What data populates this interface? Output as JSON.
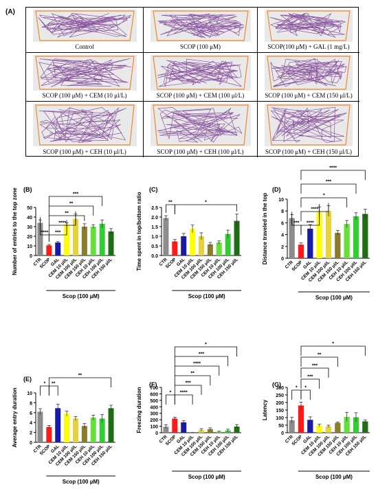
{
  "figure_label": "(A)",
  "panel_a": {
    "captions": [
      "Control",
      "SCOP (100 μM)",
      "SCOP(100 μM) + GAL (1 mg/L)",
      "SCOP (100 μM) + CEM (10 μl/L)",
      "SCOP (100 μM) + CEM (100 μl/L)",
      "SCOP (100 μM) + CEM (150 μl/L)",
      "SCOP (100 μM) + CEH (10 μl/L)",
      "SCOP (100 μM) + CEH (100 μl/L)",
      "SCOP (100 μM) + CEH (150 μl/L)"
    ],
    "track_color": "#7a3c93",
    "tank_color": "#e8892b"
  },
  "colors": [
    "#8c8c8c",
    "#ff1a1a",
    "#1a1aa8",
    "#ffff00",
    "#e6d23a",
    "#8a7d2a",
    "#66e03a",
    "#33cc33",
    "#1f6e14"
  ],
  "chart_data": [
    {
      "id": "B",
      "label": "(B)",
      "type": "bar",
      "categories": [
        "CTR",
        "SCOP",
        "GAL",
        "CEM 10 μl/L",
        "CEM 100 μl/L",
        "CEM 150 μl/L",
        "CEH 10 μl/L",
        "CEH 100 μl/L",
        "CEH 150 μl/L"
      ],
      "values": [
        34,
        10.5,
        13.5,
        32,
        38,
        30,
        30,
        33,
        25
      ],
      "errors": [
        3,
        1,
        1,
        2,
        5,
        3,
        2,
        4,
        3
      ],
      "ylabel": "Number of entries to the top zone",
      "ylim": [
        0,
        50
      ],
      "yticks": [
        0,
        10,
        20,
        30,
        40,
        50
      ],
      "group_label": "Scop (100 µM)",
      "sig": [
        {
          "from": 0,
          "to": 1,
          "label": "****",
          "level": 0
        },
        {
          "from": 1,
          "to": 3,
          "label": "***",
          "level": 0
        },
        {
          "from": 1,
          "to": 4,
          "label": "****",
          "level": 1
        },
        {
          "from": 1,
          "to": 5,
          "label": "**",
          "level": 2
        },
        {
          "from": 1,
          "to": 6,
          "label": "**",
          "level": 3
        },
        {
          "from": 1,
          "to": 7,
          "label": "***",
          "level": 4
        }
      ]
    },
    {
      "id": "C",
      "label": "(C)",
      "type": "bar",
      "categories": [
        "CTR",
        "SCOP",
        "GAL",
        "CEM 10 μl/L",
        "CEM 100 μl/L",
        "CEM 150 μl/L",
        "CEH 10 μl/L",
        "CEH 100 μl/L",
        "CEH 150 μl/L"
      ],
      "values": [
        1.95,
        0.73,
        1.0,
        1.38,
        1.0,
        0.58,
        0.68,
        1.12,
        1.8
      ],
      "errors": [
        0.12,
        0.1,
        0.15,
        0.2,
        0.18,
        0.1,
        0.08,
        0.2,
        0.35
      ],
      "ylabel": "Time spent in top/bottom ratio",
      "ylim": [
        0,
        2.5
      ],
      "yticks": [
        0.0,
        0.5,
        1.0,
        1.5,
        2.0,
        2.5
      ],
      "group_label": "Scop (100 µM)",
      "sig": [
        {
          "from": 0,
          "to": 1,
          "label": "**",
          "level": 0
        },
        {
          "from": 1,
          "to": 8,
          "label": "*",
          "level": 0
        }
      ]
    },
    {
      "id": "D",
      "label": "(D)",
      "type": "bar",
      "categories": [
        "CTR",
        "SCOP",
        "GAL",
        "CEM 10 μl/L",
        "CEM 100 μl/L",
        "CEM 150 μl/L",
        "CEH 10 μl/L",
        "CEH 100 μl/L",
        "CEH 150 μl/L"
      ],
      "values": [
        6.8,
        2.3,
        5.0,
        7.8,
        8.0,
        4.3,
        5.8,
        7.1,
        7.5
      ],
      "errors": [
        0.6,
        0.3,
        0.7,
        0.9,
        0.9,
        0.4,
        0.6,
        0.6,
        0.8
      ],
      "ylabel": "Distance traveled in the top",
      "ylim": [
        0,
        10
      ],
      "yticks": [
        0,
        2,
        4,
        6,
        8,
        10
      ],
      "group_label": "Scop (100 µM)",
      "sig": [
        {
          "from": 0,
          "to": 1,
          "label": "***",
          "level": 0
        },
        {
          "from": 1,
          "to": 3,
          "label": "****",
          "level": 0
        },
        {
          "from": 1,
          "to": 4,
          "label": "****",
          "level": 1
        },
        {
          "from": 1,
          "to": 6,
          "label": "*",
          "level": 2
        },
        {
          "from": 1,
          "to": 7,
          "label": "***",
          "level": 3
        },
        {
          "from": 1,
          "to": 8,
          "label": "****",
          "level": 4
        }
      ]
    },
    {
      "id": "E",
      "label": "(E)",
      "type": "bar",
      "categories": [
        "CTR",
        "SCOP",
        "GAL",
        "CEM 10 μl/L",
        "CEM 100 μl/L",
        "CEM 150 μl/L",
        "CEH 10 μl/L",
        "CEH 100 μl/L",
        "CEH 150 μl/L"
      ],
      "values": [
        6.2,
        3.1,
        6.9,
        5.8,
        4.8,
        3.3,
        5.0,
        4.8,
        6.9
      ],
      "errors": [
        0.6,
        0.3,
        0.8,
        0.5,
        0.4,
        0.5,
        0.5,
        0.8,
        0.6
      ],
      "ylabel": "Average  entry duration",
      "ylim": [
        0,
        10
      ],
      "yticks": [
        0,
        2,
        4,
        6,
        8,
        10
      ],
      "group_label": "Scop (100 µM)",
      "sig": [
        {
          "from": 0,
          "to": 1,
          "label": "*",
          "level": 0
        },
        {
          "from": 1,
          "to": 2,
          "label": "**",
          "level": 0
        },
        {
          "from": 1,
          "to": 8,
          "label": "**",
          "level": 1
        }
      ]
    },
    {
      "id": "F",
      "label": "(F)",
      "type": "bar",
      "categories": [
        "CTR",
        "SCOP",
        "GAL",
        "CEM 10 μl/L",
        "CEM 100 μl/L",
        "CEM 150 μl/L",
        "CEH 10 μl/L",
        "CEH 100 μl/L",
        "CEH 150 μl/L"
      ],
      "values": [
        92,
        218,
        160,
        2,
        42,
        55,
        15,
        35,
        95
      ],
      "errors": [
        30,
        22,
        25,
        2,
        20,
        20,
        8,
        20,
        30
      ],
      "ylabel": "Freezing duration",
      "ylim": [
        0,
        700
      ],
      "yticks": [
        0,
        100,
        200,
        300,
        400,
        500,
        600,
        700
      ],
      "group_label": "Scop (100 µM)",
      "sig": [
        {
          "from": 0,
          "to": 1,
          "label": "*",
          "level": 0
        },
        {
          "from": 1,
          "to": 3,
          "label": "****",
          "level": 0
        },
        {
          "from": 1,
          "to": 4,
          "label": "***",
          "level": 1
        },
        {
          "from": 1,
          "to": 5,
          "label": "**",
          "level": 2
        },
        {
          "from": 1,
          "to": 6,
          "label": "****",
          "level": 3
        },
        {
          "from": 1,
          "to": 7,
          "label": "***",
          "level": 4
        },
        {
          "from": 1,
          "to": 8,
          "label": "*",
          "level": 5
        }
      ]
    },
    {
      "id": "G",
      "label": "(G)",
      "type": "bar",
      "categories": [
        "CTR",
        "SCOP",
        "GAL",
        "CEM 10 μl/L",
        "CEM 100 μl/L",
        "CEM 150 μl/L",
        "CEH 10 μl/L",
        "CEH 100 μl/L",
        "CEH 150 μl/L"
      ],
      "values": [
        82,
        180,
        85,
        48,
        42,
        65,
        105,
        102,
        75
      ],
      "errors": [
        20,
        22,
        20,
        8,
        8,
        6,
        30,
        30,
        10
      ],
      "ylabel": "Latency",
      "ylim": [
        0,
        300
      ],
      "yticks": [
        0,
        50,
        100,
        150,
        200,
        250,
        300
      ],
      "group_label": "Scop (100 µM)",
      "sig": [
        {
          "from": 0,
          "to": 1,
          "label": "*",
          "level": 0
        },
        {
          "from": 1,
          "to": 2,
          "label": "*",
          "level": 0
        },
        {
          "from": 1,
          "to": 3,
          "label": "***",
          "level": 1
        },
        {
          "from": 1,
          "to": 4,
          "label": "***",
          "level": 2
        },
        {
          "from": 1,
          "to": 5,
          "label": "**",
          "level": 3
        },
        {
          "from": 1,
          "to": 8,
          "label": "*",
          "level": 4
        }
      ]
    }
  ]
}
